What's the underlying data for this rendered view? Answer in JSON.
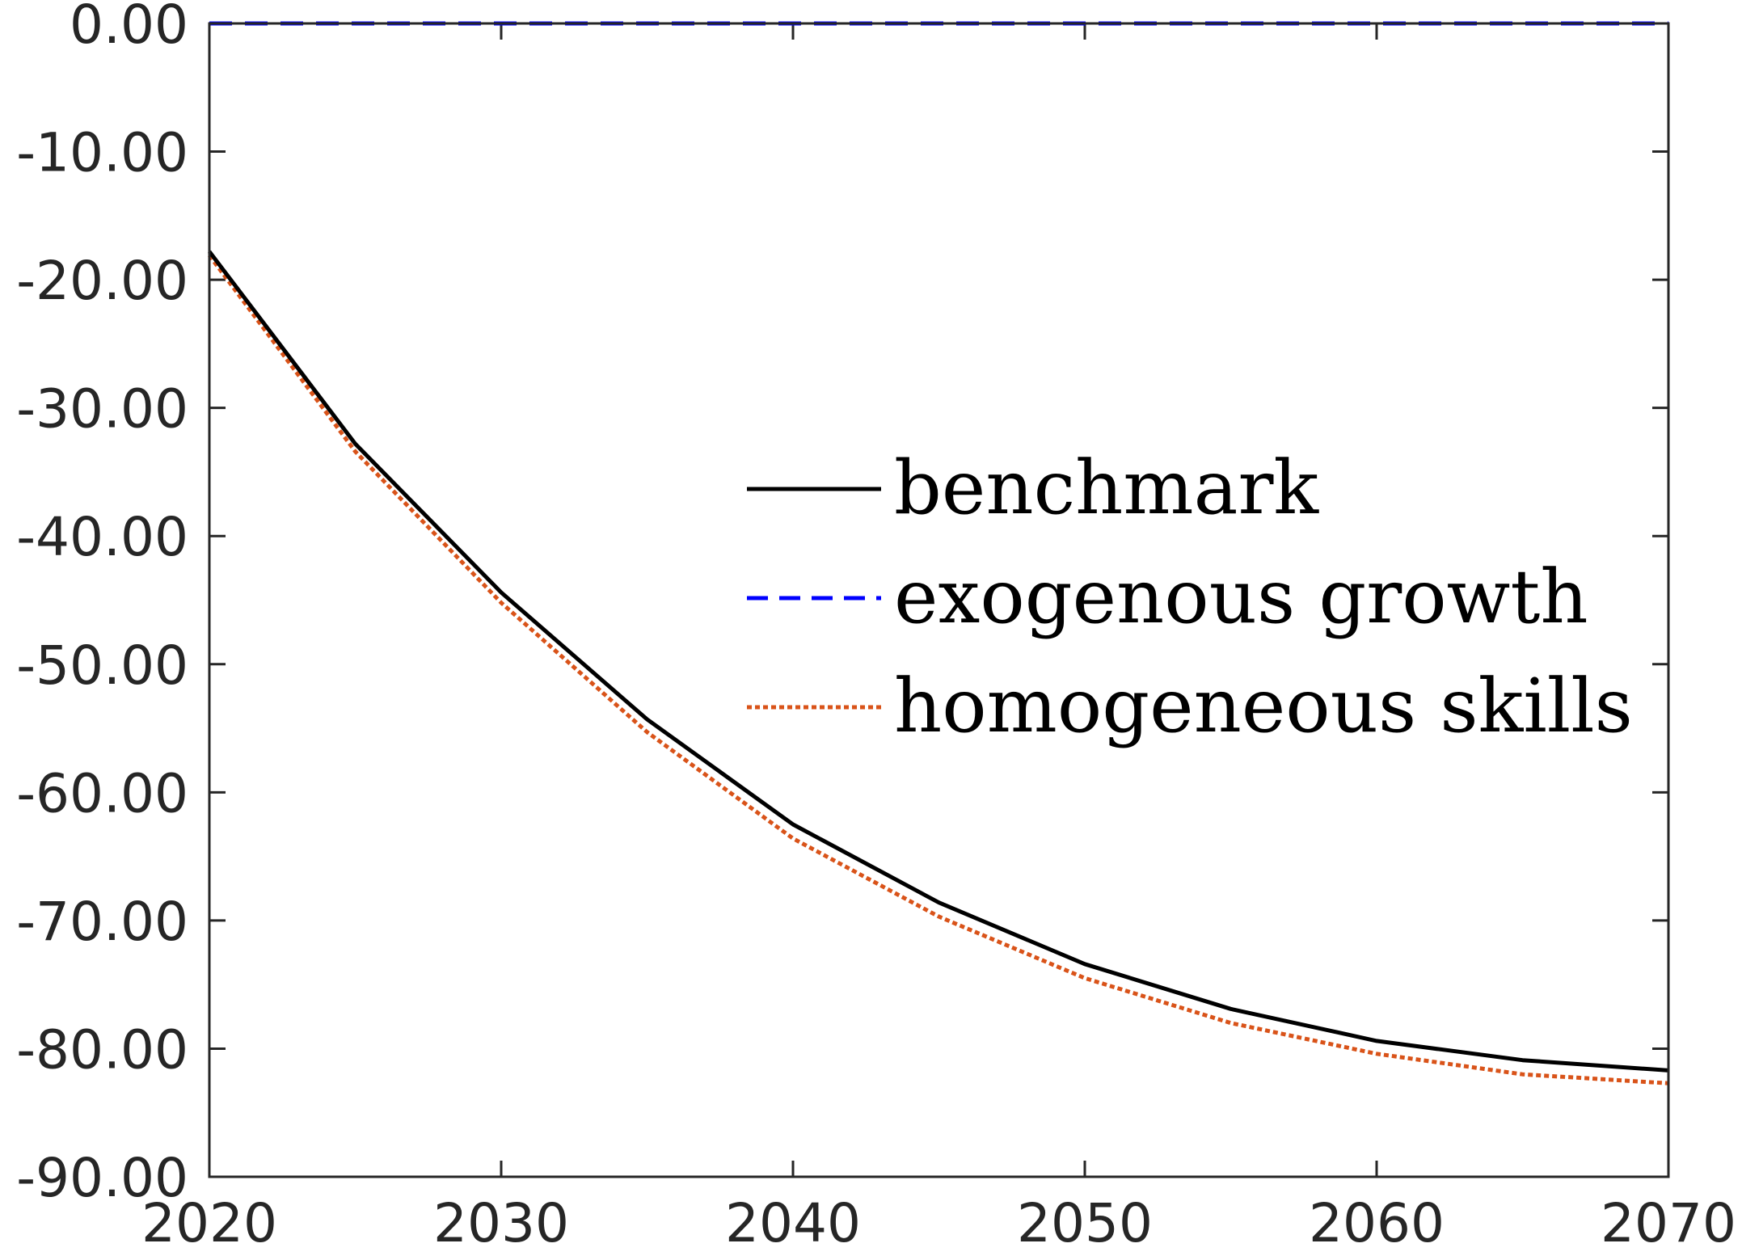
{
  "chart_data": {
    "type": "line",
    "title": "",
    "xlabel": "",
    "ylabel": "",
    "xlim": [
      2020,
      2070
    ],
    "ylim": [
      -90,
      0
    ],
    "x": [
      2020,
      2025,
      2030,
      2035,
      2040,
      2045,
      2050,
      2055,
      2060,
      2065,
      2070
    ],
    "x_ticks": [
      2020,
      2030,
      2040,
      2050,
      2060,
      2070
    ],
    "x_tick_labels": [
      "2020",
      "2030",
      "2040",
      "2050",
      "2060",
      "2070"
    ],
    "y_ticks": [
      0,
      -10,
      -20,
      -30,
      -40,
      -50,
      -60,
      -70,
      -80,
      -90
    ],
    "y_tick_labels": [
      "0.00",
      "-10.00",
      "-20.00",
      "-30.00",
      "-40.00",
      "-50.00",
      "-60.00",
      "-70.00",
      "-80.00",
      "-90.00"
    ],
    "grid": false,
    "legend_position": "center-right",
    "series": [
      {
        "name": "benchmark",
        "color": "#000000",
        "style": "solid",
        "values": [
          -17.8,
          -32.8,
          -44.4,
          -54.3,
          -62.5,
          -68.6,
          -73.4,
          -76.9,
          -79.4,
          -80.9,
          -81.7
        ]
      },
      {
        "name": "exogenous growth",
        "color": "#0000ff",
        "style": "dashed",
        "values": [
          0,
          0,
          0,
          0,
          0,
          0,
          0,
          0,
          0,
          0,
          0
        ]
      },
      {
        "name": "homogeneous skills",
        "color": "#d95319",
        "style": "dotted",
        "values": [
          -18.1,
          -33.4,
          -45.2,
          -55.3,
          -63.6,
          -69.7,
          -74.5,
          -78.0,
          -80.4,
          -82.0,
          -82.7
        ]
      }
    ]
  }
}
